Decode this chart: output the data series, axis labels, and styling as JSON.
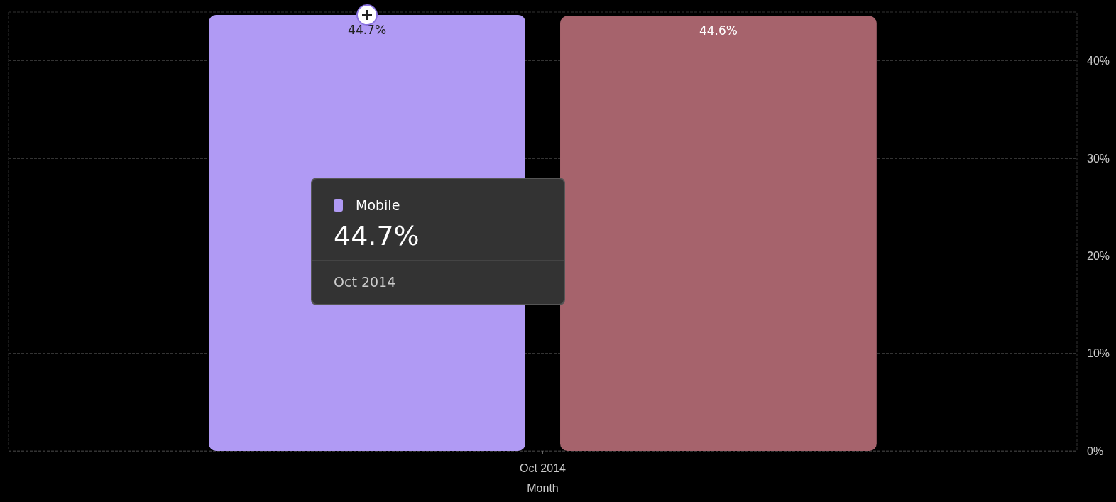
{
  "chart_data": {
    "type": "bar",
    "xlabel": "Month",
    "categories": [
      "Oct 2014"
    ],
    "series": [
      {
        "name": "Mobile",
        "color": "#b09af4",
        "values": [
          44.7
        ],
        "value_labels": [
          "44.7%"
        ]
      },
      {
        "color": "#a6636c",
        "values": [
          44.6
        ],
        "value_labels": [
          "44.6%"
        ]
      }
    ],
    "ylim": [
      0,
      45
    ],
    "yticks": [
      {
        "value": 0,
        "label": "0%"
      },
      {
        "value": 10,
        "label": "10%"
      },
      {
        "value": 20,
        "label": "20%"
      },
      {
        "value": 30,
        "label": "30%"
      },
      {
        "value": 40,
        "label": "40%"
      }
    ],
    "grid": "y"
  }
}
